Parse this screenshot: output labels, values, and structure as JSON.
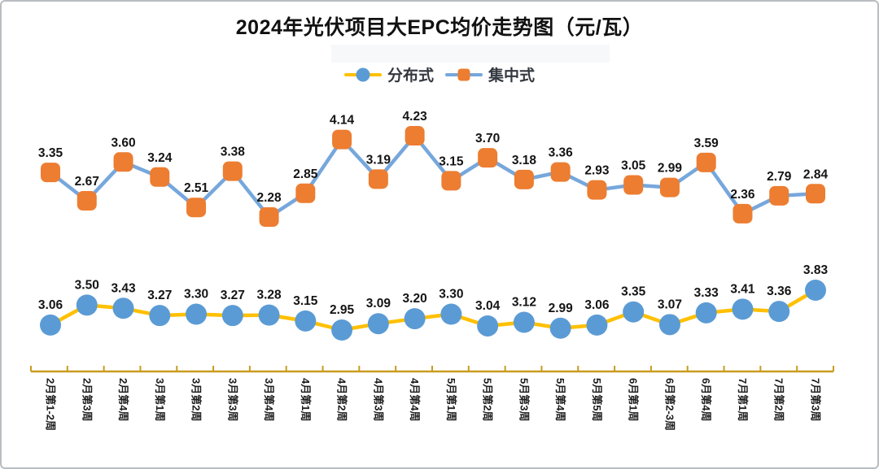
{
  "title": "2024年光伏项目大EPC均价走势图（元/瓦）",
  "colors": {
    "distributed_marker": "#5B9BD5",
    "distributed_line": "#FFC000",
    "centralized_marker": "#ED7D31",
    "centralized_line": "#76A7DC",
    "axis": "#C99C1F",
    "data_label": "#141414",
    "axis_label": "#1d1d1d",
    "title_text": "#111111"
  },
  "chart_data": {
    "type": "line",
    "title": "2024年光伏项目大EPC均价走势图（元/瓦）",
    "legend_position": "top",
    "data_labels": true,
    "y_axis_visible": false,
    "x_axis_color": "#C99C1F",
    "categories": [
      "2月第1-2周",
      "2月第3周",
      "2月第4周",
      "3月第1周",
      "3月第2周",
      "3月第3周",
      "3月第4周",
      "4月第1周",
      "4月第2周",
      "4月第3周",
      "4月第4周",
      "5月第1周",
      "5月第2周",
      "5月第3周",
      "5月第4周",
      "5月第5周",
      "6月第1周",
      "6月第2-3周",
      "6月第4周",
      "7月第1周",
      "7月第2周",
      "7月第3周"
    ],
    "series": [
      {
        "name": "分布式",
        "marker": "circle",
        "marker_color": "#5B9BD5",
        "line_color": "#FFC000",
        "values": [
          3.06,
          3.5,
          3.43,
          3.27,
          3.3,
          3.27,
          3.28,
          3.15,
          2.95,
          3.09,
          3.2,
          3.3,
          3.04,
          3.12,
          2.99,
          3.06,
          3.35,
          3.07,
          3.33,
          3.41,
          3.36,
          3.83
        ]
      },
      {
        "name": "集中式",
        "marker": "rounded-square",
        "marker_color": "#ED7D31",
        "line_color": "#76A7DC",
        "values": [
          3.35,
          2.67,
          3.6,
          3.24,
          2.51,
          3.38,
          2.28,
          2.85,
          4.14,
          3.19,
          4.23,
          3.15,
          3.7,
          3.18,
          3.36,
          2.93,
          3.05,
          2.99,
          3.59,
          2.36,
          2.79,
          2.84
        ]
      }
    ]
  }
}
